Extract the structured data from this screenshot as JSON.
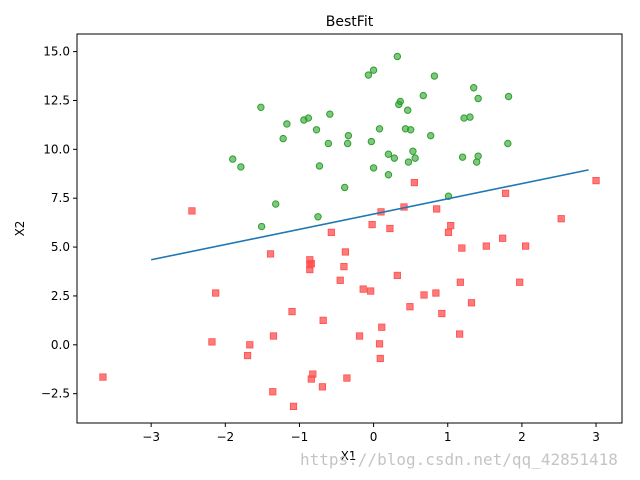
{
  "chart_data": {
    "type": "scatter",
    "title": "BestFit",
    "xlabel": "X1",
    "ylabel": "X2",
    "xlim": [
      -4.0,
      3.35
    ],
    "ylim": [
      -4.0,
      15.9
    ],
    "xticks": [
      -3,
      -2,
      -1,
      0,
      1,
      2,
      3
    ],
    "xtick_labels": [
      "−3",
      "−2",
      "−1",
      "0",
      "1",
      "2",
      "3"
    ],
    "yticks": [
      -2.5,
      0.0,
      2.5,
      5.0,
      7.5,
      10.0,
      12.5,
      15.0
    ],
    "ytick_labels": [
      "−2.5",
      "0.0",
      "2.5",
      "5.0",
      "7.5",
      "10.0",
      "12.5",
      "15.0"
    ],
    "grid": false,
    "series": [
      {
        "marker": "circle",
        "color": "#2ca02c",
        "points": [
          [
            0.32,
            14.75
          ],
          [
            0.0,
            14.05
          ],
          [
            -0.07,
            13.8
          ],
          [
            0.82,
            13.75
          ],
          [
            1.35,
            13.15
          ],
          [
            0.36,
            12.45
          ],
          [
            0.34,
            12.3
          ],
          [
            0.67,
            12.75
          ],
          [
            1.41,
            12.6
          ],
          [
            1.82,
            12.7
          ],
          [
            -1.52,
            12.15
          ],
          [
            0.46,
            12.0
          ],
          [
            -0.88,
            11.6
          ],
          [
            -0.94,
            11.5
          ],
          [
            -0.59,
            11.8
          ],
          [
            -1.17,
            11.3
          ],
          [
            1.22,
            11.6
          ],
          [
            1.3,
            11.65
          ],
          [
            0.43,
            11.05
          ],
          [
            0.5,
            11.0
          ],
          [
            0.08,
            11.05
          ],
          [
            -0.77,
            11.0
          ],
          [
            -0.34,
            10.7
          ],
          [
            0.77,
            10.7
          ],
          [
            -1.22,
            10.55
          ],
          [
            -0.03,
            10.4
          ],
          [
            -0.61,
            10.3
          ],
          [
            -0.35,
            10.3
          ],
          [
            1.81,
            10.3
          ],
          [
            0.53,
            9.9
          ],
          [
            0.2,
            9.75
          ],
          [
            0.28,
            9.55
          ],
          [
            0.56,
            9.55
          ],
          [
            0.47,
            9.35
          ],
          [
            1.2,
            9.6
          ],
          [
            1.41,
            9.65
          ],
          [
            1.39,
            9.35
          ],
          [
            -1.9,
            9.5
          ],
          [
            -1.79,
            9.1
          ],
          [
            -0.73,
            9.15
          ],
          [
            0.0,
            9.05
          ],
          [
            0.2,
            8.7
          ],
          [
            -0.39,
            8.05
          ],
          [
            1.01,
            7.6
          ],
          [
            -1.32,
            7.2
          ],
          [
            -0.75,
            6.55
          ],
          [
            -1.51,
            6.05
          ]
        ]
      },
      {
        "marker": "square",
        "color": "#ff4d4d",
        "points": [
          [
            3.0,
            8.4
          ],
          [
            0.55,
            8.3
          ],
          [
            1.78,
            7.75
          ],
          [
            0.41,
            7.05
          ],
          [
            0.85,
            6.95
          ],
          [
            -2.45,
            6.85
          ],
          [
            0.1,
            6.8
          ],
          [
            2.53,
            6.45
          ],
          [
            -0.02,
            6.15
          ],
          [
            1.04,
            6.1
          ],
          [
            0.22,
            5.95
          ],
          [
            1.01,
            5.75
          ],
          [
            -0.57,
            5.75
          ],
          [
            1.74,
            5.45
          ],
          [
            1.52,
            5.05
          ],
          [
            2.05,
            5.05
          ],
          [
            1.19,
            4.95
          ],
          [
            -0.38,
            4.75
          ],
          [
            -1.39,
            4.65
          ],
          [
            -0.86,
            4.35
          ],
          [
            -0.86,
            4.1
          ],
          [
            -0.84,
            4.15
          ],
          [
            -0.86,
            3.85
          ],
          [
            -0.4,
            4.0
          ],
          [
            0.32,
            3.55
          ],
          [
            -0.45,
            3.3
          ],
          [
            1.97,
            3.2
          ],
          [
            1.17,
            3.2
          ],
          [
            -0.14,
            2.85
          ],
          [
            -0.04,
            2.75
          ],
          [
            -2.13,
            2.65
          ],
          [
            0.84,
            2.65
          ],
          [
            0.68,
            2.55
          ],
          [
            1.32,
            2.15
          ],
          [
            0.49,
            1.95
          ],
          [
            -1.1,
            1.7
          ],
          [
            0.92,
            1.6
          ],
          [
            -0.68,
            1.25
          ],
          [
            0.11,
            0.9
          ],
          [
            1.16,
            0.55
          ],
          [
            -1.35,
            0.45
          ],
          [
            -0.19,
            0.45
          ],
          [
            -2.18,
            0.15
          ],
          [
            -1.67,
            0.0
          ],
          [
            0.08,
            0.05
          ],
          [
            -1.7,
            -0.55
          ],
          [
            0.09,
            -0.7
          ],
          [
            -3.65,
            -1.65
          ],
          [
            -0.82,
            -1.5
          ],
          [
            -0.36,
            -1.7
          ],
          [
            -0.84,
            -1.75
          ],
          [
            -0.69,
            -2.15
          ],
          [
            -1.36,
            -2.4
          ],
          [
            -1.08,
            -3.15
          ]
        ]
      }
    ],
    "line": {
      "color": "#1f77b4",
      "x": [
        -3.0,
        2.9
      ],
      "y": [
        4.35,
        8.95
      ]
    }
  },
  "watermark": "https://blog.csdn.net/qq_42851418"
}
